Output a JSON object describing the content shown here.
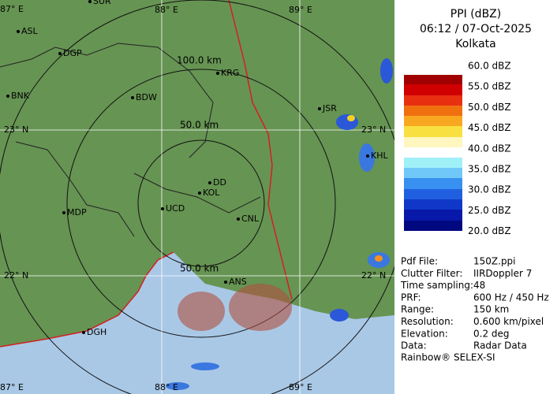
{
  "header": {
    "title": "PPI (dBZ)",
    "time": "06:12 / 07-Oct-2025",
    "station": "Kolkata"
  },
  "legend": {
    "labels": [
      "60.0 dBZ",
      "55.0 dBZ",
      "50.0 dBZ",
      "45.0 dBZ",
      "40.0 dBZ",
      "35.0 dBZ",
      "30.0 dBZ",
      "25.0 dBZ",
      "20.0 dBZ"
    ]
  },
  "map": {
    "grid_labels": [
      "87° E",
      "88° E",
      "89° E",
      "23° N",
      "23° N",
      "22° N",
      "22° N",
      "87° E",
      "88° E",
      "89° E"
    ],
    "range_labels": [
      "100.0 km",
      "50.0 km",
      "50.0 km"
    ],
    "cities": [
      "SUR",
      "ASL",
      "DGP",
      "BNK",
      "BDW",
      "KRG",
      "JSR",
      "KHL",
      "DD",
      "KOL",
      "UCD",
      "CNL",
      "MDP",
      "DGH",
      "ANS"
    ]
  },
  "info": {
    "rows": [
      [
        "Pdf File:",
        "150Z.ppi"
      ],
      [
        "Clutter Filter:",
        "IIRDoppler 7"
      ],
      [
        "Time sampling:48",
        ""
      ],
      [
        "PRF:",
        "600 Hz / 450 Hz"
      ],
      [
        "Range:",
        "150 km"
      ],
      [
        "Resolution:",
        "0.600 km/pixel"
      ],
      [
        "Elevation:",
        "0.2 deg"
      ],
      [
        "Data:",
        "Radar Data"
      ]
    ],
    "footer": "Rainbow® SELEX-SI"
  }
}
